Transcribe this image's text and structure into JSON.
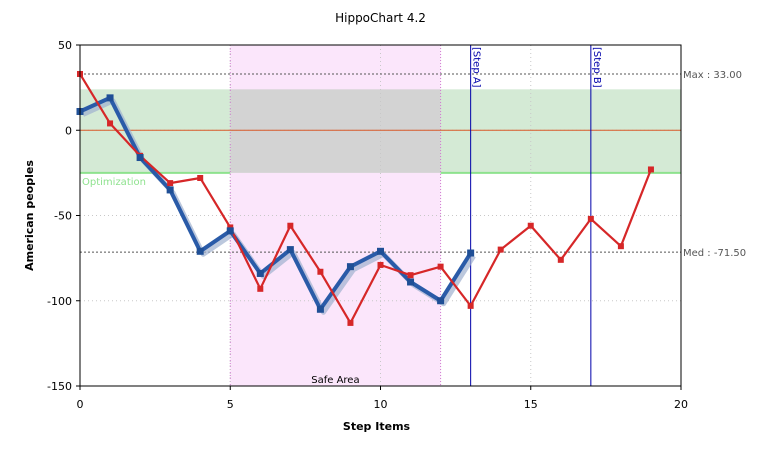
{
  "chart_data": {
    "type": "line",
    "title": "HippoChart 4.2",
    "xlabel": "Step Items",
    "ylabel": "American peoples",
    "xlim": [
      0,
      20
    ],
    "ylim": [
      -150,
      50
    ],
    "x_ticks": [
      0,
      5,
      10,
      15,
      20
    ],
    "y_ticks": [
      50,
      0,
      -50,
      -100,
      -150
    ],
    "grid": true,
    "series": [
      {
        "color": "#d62728",
        "x": [
          0,
          1,
          2,
          3,
          4,
          5,
          6,
          7,
          8,
          9,
          10,
          11,
          12,
          13,
          14,
          15,
          16,
          17,
          18,
          19
        ],
        "y": [
          33,
          4,
          -15,
          -31,
          -28,
          -57,
          -93,
          -56,
          -83,
          -113,
          -79,
          -85,
          -80,
          -103,
          -70,
          -56,
          -76,
          -52,
          -68,
          -23
        ]
      },
      {
        "color": "#2a5ba8",
        "x": [
          0,
          1,
          2,
          3,
          4,
          5,
          6,
          7,
          8,
          9,
          10,
          11,
          12,
          13
        ],
        "y": [
          11,
          19,
          -16,
          -35,
          -71,
          -59,
          -84,
          -70,
          -105,
          -80,
          -71,
          -89,
          -100,
          -72
        ]
      }
    ],
    "bands": [
      {
        "label": "Optimization",
        "axis": "y",
        "from": -25,
        "to": 24,
        "color": "#d4ead5"
      },
      {
        "label": "Safe Area",
        "axis": "x",
        "from": 5,
        "to": 12,
        "color": "#fbe6fb"
      }
    ],
    "overlap_color": "#d3d3d3",
    "reference_lines": [
      {
        "label": "Max : 33.00",
        "axis": "y",
        "value": 33
      },
      {
        "label": "Med : -71.50",
        "axis": "y",
        "value": -71.5
      },
      {
        "label": "",
        "axis": "y",
        "value": 0,
        "color": "#d85a2a"
      }
    ],
    "markers": [
      {
        "label": "[Step A]",
        "x": 13
      },
      {
        "label": "[Step B]",
        "x": 17
      }
    ]
  }
}
